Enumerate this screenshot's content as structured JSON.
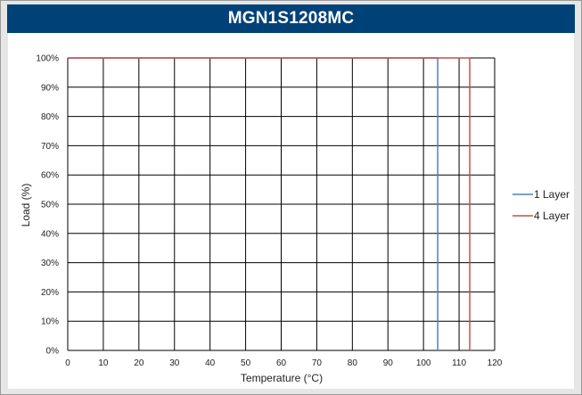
{
  "chart_data": {
    "type": "line",
    "title": "MGN1S1208MC",
    "xlabel": "Temperature (°C)",
    "ylabel": "Load (%)",
    "xlim": [
      0,
      120
    ],
    "ylim": [
      0,
      100
    ],
    "x_ticks": [
      "0",
      "10",
      "20",
      "30",
      "40",
      "50",
      "60",
      "70",
      "80",
      "90",
      "100",
      "110",
      "120"
    ],
    "y_ticks": [
      "0%",
      "10%",
      "20%",
      "30%",
      "40%",
      "50%",
      "60%",
      "70%",
      "80%",
      "90%",
      "100%"
    ],
    "grid": true,
    "legend_position": "right",
    "series": [
      {
        "name": "1 Layer",
        "color": "#4f81bd",
        "x": [
          0,
          104,
          104
        ],
        "y": [
          100,
          100,
          0
        ]
      },
      {
        "name": "4 Layer",
        "color": "#c0504d",
        "x": [
          0,
          113,
          113
        ],
        "y": [
          100,
          100,
          0
        ]
      }
    ]
  }
}
